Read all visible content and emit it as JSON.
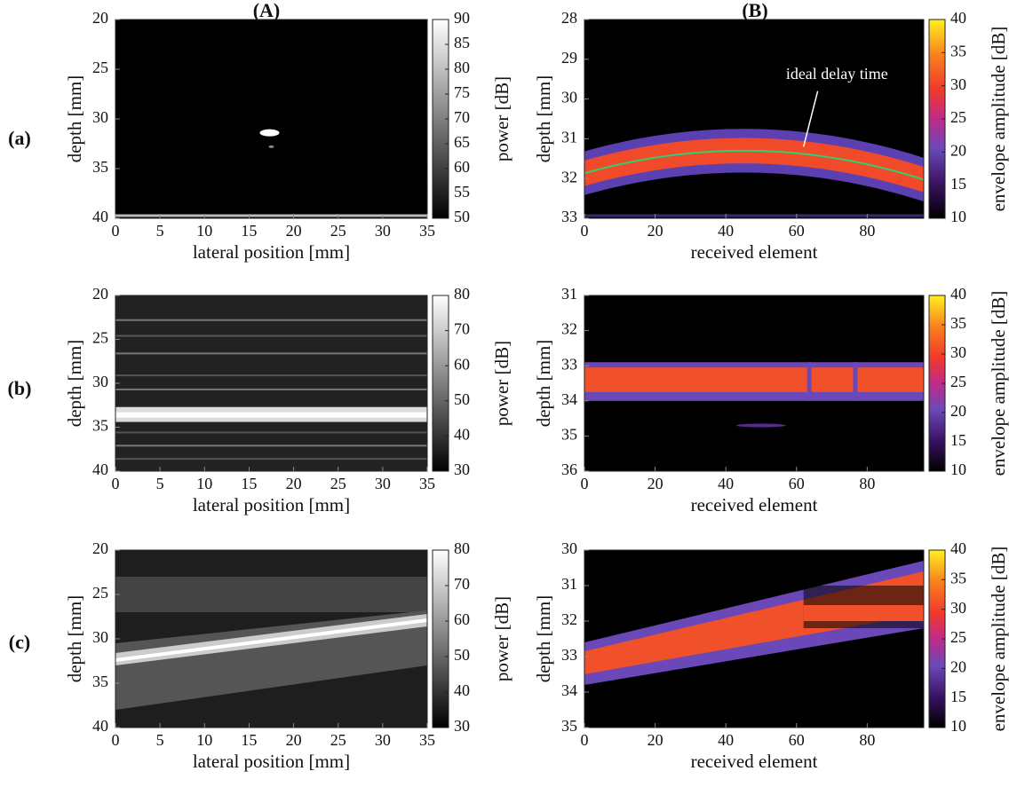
{
  "column_labels": [
    "(A)",
    "(B)"
  ],
  "row_labels": [
    "(a)",
    "(b)",
    "(c)"
  ],
  "chart_data": [
    {
      "type": "image",
      "xlabel": "lateral position [mm]",
      "ylabel": "depth [mm]",
      "xlim": [
        0,
        35
      ],
      "xticks": [
        0,
        5,
        10,
        15,
        20,
        25,
        30,
        35
      ],
      "ylim": [
        20,
        40
      ],
      "yticks": [
        20,
        25,
        30,
        35,
        40
      ],
      "colorbar": {
        "label": "power [dB]",
        "lim": [
          50,
          90
        ],
        "ticks": [
          50,
          55,
          60,
          65,
          70,
          75,
          80,
          85,
          90
        ],
        "colormap": "gray"
      }
    },
    {
      "type": "image",
      "xlabel": "received element",
      "ylabel": "depth [mm]",
      "xlim": [
        0,
        96
      ],
      "xticks": [
        0,
        20,
        40,
        60,
        80
      ],
      "ylim": [
        28,
        33
      ],
      "yticks": [
        28,
        29,
        30,
        31,
        32,
        33
      ],
      "annotation": "ideal delay time",
      "colorbar": {
        "label": "envelope amplitude [dB]",
        "lim": [
          10,
          40
        ],
        "ticks": [
          10,
          15,
          20,
          25,
          30,
          35,
          40
        ],
        "colormap": "hot"
      }
    },
    {
      "type": "image",
      "xlabel": "lateral position [mm]",
      "ylabel": "depth [mm]",
      "xlim": [
        0,
        35
      ],
      "xticks": [
        0,
        5,
        10,
        15,
        20,
        25,
        30,
        35
      ],
      "ylim": [
        20,
        40
      ],
      "yticks": [
        20,
        25,
        30,
        35,
        40
      ],
      "colorbar": {
        "label": "power [dB]",
        "lim": [
          30,
          80
        ],
        "ticks": [
          30,
          40,
          50,
          60,
          70,
          80
        ],
        "colormap": "gray"
      }
    },
    {
      "type": "image",
      "xlabel": "received element",
      "ylabel": "depth [mm]",
      "xlim": [
        0,
        96
      ],
      "xticks": [
        0,
        20,
        40,
        60,
        80
      ],
      "ylim": [
        31,
        36
      ],
      "yticks": [
        31,
        32,
        33,
        34,
        35,
        36
      ],
      "colorbar": {
        "label": "envelope amplitude [dB]",
        "lim": [
          10,
          40
        ],
        "ticks": [
          10,
          15,
          20,
          25,
          30,
          35,
          40
        ],
        "colormap": "hot"
      }
    },
    {
      "type": "image",
      "xlabel": "lateral position [mm]",
      "ylabel": "depth [mm]",
      "xlim": [
        0,
        35
      ],
      "xticks": [
        0,
        5,
        10,
        15,
        20,
        25,
        30,
        35
      ],
      "ylim": [
        20,
        40
      ],
      "yticks": [
        20,
        25,
        30,
        35,
        40
      ],
      "colorbar": {
        "label": "power [dB]",
        "lim": [
          30,
          80
        ],
        "ticks": [
          30,
          40,
          50,
          60,
          70,
          80
        ],
        "colormap": "gray"
      }
    },
    {
      "type": "image",
      "xlabel": "received element",
      "ylabel": "depth [mm]",
      "xlim": [
        0,
        96
      ],
      "xticks": [
        0,
        20,
        40,
        60,
        80
      ],
      "ylim": [
        30,
        35
      ],
      "yticks": [
        30,
        31,
        32,
        33,
        34,
        35
      ],
      "colorbar": {
        "label": "envelope amplitude [dB]",
        "lim": [
          10,
          40
        ],
        "ticks": [
          10,
          15,
          20,
          25,
          30,
          35,
          40
        ],
        "colormap": "hot"
      }
    }
  ]
}
